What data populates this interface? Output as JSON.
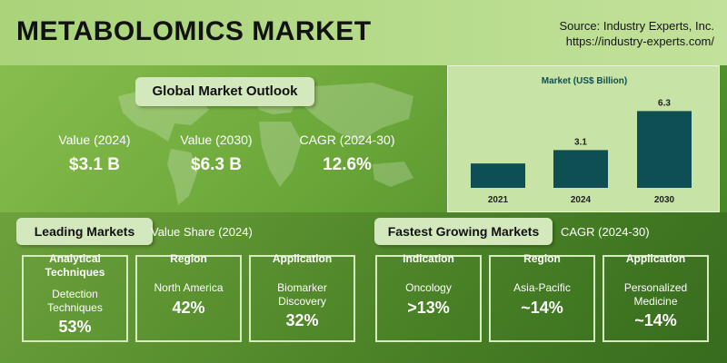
{
  "header": {
    "title": "METABOLOMICS MARKET",
    "source_line1": "Source: Industry Experts, Inc.",
    "source_line2": "https://industry-experts.com/"
  },
  "outlook": {
    "heading": "Global Market Outlook",
    "kpis": [
      {
        "label": "Value (2024)",
        "value": "$3.1 B"
      },
      {
        "label": "Value (2030)",
        "value": "$6.3 B"
      },
      {
        "label": "CAGR (2024-30)",
        "value": "12.6%"
      }
    ]
  },
  "chart_data": {
    "type": "bar",
    "title": "Market (US$ Billion)",
    "categories": [
      "2021",
      "2024",
      "2030"
    ],
    "values": [
      null,
      3.1,
      6.3
    ],
    "estimated_values": [
      2.0,
      3.1,
      6.3
    ],
    "value_labels": [
      "",
      "3.1",
      "6.3"
    ],
    "ylim": [
      0,
      7
    ],
    "grid": false,
    "bar_color": "#0d4f53"
  },
  "leading": {
    "heading": "Leading Markets",
    "sublabel": "Value Share (2024)",
    "boxes": [
      {
        "head": "Analytical Techniques",
        "text": "Detection Techniques",
        "value": "53%"
      },
      {
        "head": "Region",
        "text": "North America",
        "value": "42%"
      },
      {
        "head": "Application",
        "text": "Biomarker Discovery",
        "value": "32%"
      }
    ]
  },
  "fastest": {
    "heading": "Fastest Growing Markets",
    "sublabel": "CAGR (2024-30)",
    "boxes": [
      {
        "head": "Indication",
        "text": "Oncology",
        "value": ">13%"
      },
      {
        "head": "Region",
        "text": "Asia-Pacific",
        "value": "~14%"
      },
      {
        "head": "Application",
        "text": "Personalized Medicine",
        "value": "~14%"
      }
    ]
  },
  "colors": {
    "accent_bar": "#0d4f53",
    "pill_bg": "#d4e8bd"
  }
}
